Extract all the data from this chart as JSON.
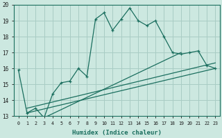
{
  "title": "",
  "xlabel": "Humidex (Indice chaleur)",
  "bg_color": "#cce8e0",
  "grid_color": "#a8ccc4",
  "line_color": "#1a6e5e",
  "xlim": [
    -0.5,
    23.5
  ],
  "ylim": [
    13,
    20
  ],
  "xticks": [
    0,
    1,
    2,
    3,
    4,
    5,
    6,
    7,
    8,
    9,
    10,
    11,
    12,
    13,
    14,
    15,
    16,
    17,
    18,
    19,
    20,
    21,
    22,
    23
  ],
  "yticks": [
    13,
    14,
    15,
    16,
    17,
    18,
    19,
    20
  ],
  "main_x": [
    0,
    1,
    2,
    3,
    4,
    5,
    6,
    7,
    8,
    9,
    10,
    11,
    12,
    13,
    14,
    15,
    16,
    17,
    18,
    19,
    20,
    21,
    22,
    23
  ],
  "main_y": [
    15.9,
    13.2,
    13.5,
    12.9,
    14.4,
    15.1,
    15.2,
    16.0,
    15.5,
    19.1,
    19.5,
    18.4,
    19.1,
    19.8,
    19.0,
    18.7,
    19.0,
    18.0,
    17.0,
    16.9,
    17.0,
    17.1,
    16.2,
    16.0
  ],
  "line1_x": [
    1,
    23
  ],
  "line1_y": [
    13.2,
    16.0
  ],
  "line2_x": [
    1,
    23
  ],
  "line2_y": [
    13.5,
    16.35
  ],
  "line3_x": [
    3,
    19
  ],
  "line3_y": [
    12.9,
    17.0
  ]
}
